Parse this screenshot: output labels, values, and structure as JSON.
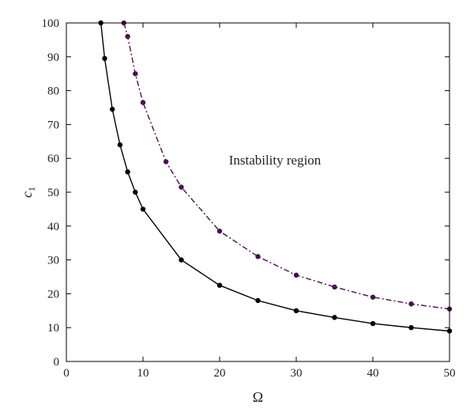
{
  "chart_data": {
    "type": "line",
    "xlabel": "Ω",
    "ylabel_main": "c",
    "ylabel_sub": "1",
    "xlim": [
      0,
      50
    ],
    "ylim": [
      0,
      100
    ],
    "xticks": [
      0,
      10,
      20,
      30,
      40,
      50
    ],
    "yticks": [
      0,
      10,
      20,
      30,
      40,
      50,
      60,
      70,
      80,
      90,
      100
    ],
    "grid": false,
    "annotation": "Instability region",
    "series": [
      {
        "color": "#000000",
        "style": "solid",
        "x": [
          4.5,
          5,
          6,
          7,
          8,
          9,
          10,
          15,
          20,
          25,
          30,
          35,
          40,
          45,
          50
        ],
        "y": [
          100,
          89.5,
          74.5,
          64,
          56,
          50,
          45,
          30,
          22.5,
          18,
          15,
          13,
          11.2,
          10,
          9
        ]
      },
      {
        "color": "#4b0f4f",
        "style": "dashdot",
        "x": [
          7.5,
          8,
          9,
          10,
          13,
          15,
          20,
          25,
          30,
          35,
          40,
          45,
          50
        ],
        "y": [
          100,
          96,
          85,
          76.5,
          59,
          51.5,
          38.5,
          31,
          25.5,
          22,
          19,
          17,
          15.5
        ]
      }
    ]
  }
}
